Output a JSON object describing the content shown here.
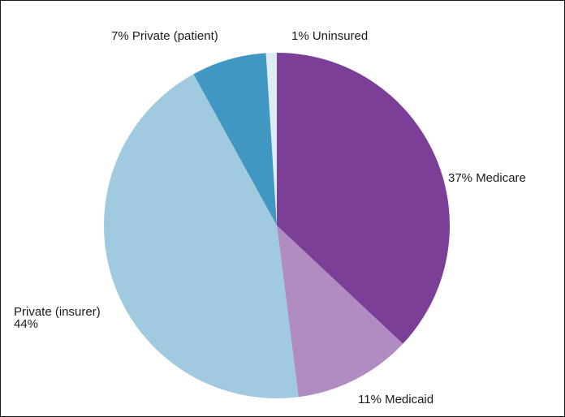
{
  "chart_data": {
    "type": "pie",
    "title": "",
    "start_angle_deg": 0,
    "direction": "clockwise",
    "slices": [
      {
        "label": "Medicare",
        "value": 37,
        "color": "#7b3f98",
        "label_lines": [
          "37%  Medicare"
        ]
      },
      {
        "label": "Medicaid",
        "value": 11,
        "color": "#b18cc2",
        "label_lines": [
          "11% Medicaid"
        ]
      },
      {
        "label": "Private (insurer)",
        "value": 44,
        "color": "#a0cadf",
        "label_lines": [
          "Private (insurer)",
          "44%"
        ]
      },
      {
        "label": "Private (patient)",
        "value": 7,
        "color": "#3f97c2",
        "label_lines": [
          "7% Private (patient)"
        ]
      },
      {
        "label": "Uninsured",
        "value": 1,
        "color": "#deedf5",
        "label_lines": [
          "1% Uninsured"
        ]
      }
    ]
  }
}
